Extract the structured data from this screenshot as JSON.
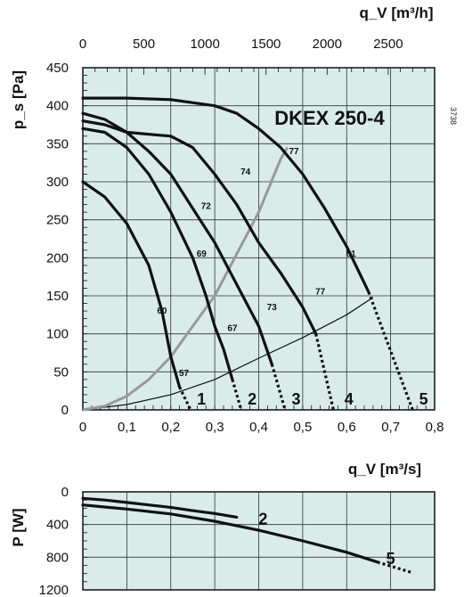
{
  "chart_data": [
    {
      "type": "line",
      "title": "DKEX 250-4",
      "doc_code": "3738",
      "xlabel": "q_V [m³/s]",
      "ylabel": "p_s [Pa]",
      "xlabel_top": "q_V [m³/h]",
      "xlim": [
        0,
        0.8
      ],
      "ylim": [
        0,
        450
      ],
      "xlim_top": [
        0,
        2880
      ],
      "x_ticks": [
        "0",
        "0,1",
        "0,2",
        "0,3",
        "0,4",
        "0,5",
        "0,6",
        "0,7",
        "0,8"
      ],
      "y_ticks": [
        "0",
        "50",
        "100",
        "150",
        "200",
        "250",
        "300",
        "350",
        "400",
        "450"
      ],
      "x_top_ticks": [
        {
          "label": "0",
          "value": 0
        },
        {
          "label": "500",
          "value": 500
        },
        {
          "label": "1000",
          "value": 1000
        },
        {
          "label": "1500",
          "value": 1500
        },
        {
          "label": "2000",
          "value": 2000
        },
        {
          "label": "2500",
          "value": 2500
        }
      ],
      "grid": true,
      "background": "#d9ece9",
      "series": [
        {
          "name": "1",
          "solid": [
            [
              0,
              300
            ],
            [
              0.05,
              280
            ],
            [
              0.1,
              245
            ],
            [
              0.15,
              190
            ],
            [
              0.18,
              130
            ],
            [
              0.2,
              70
            ],
            [
              0.22,
              30
            ]
          ],
          "dashed": [
            [
              0.22,
              30
            ],
            [
              0.245,
              0
            ]
          ],
          "label_at": [
            0.27,
            14
          ]
        },
        {
          "name": "2",
          "solid": [
            [
              0,
              370
            ],
            [
              0.05,
              365
            ],
            [
              0.1,
              345
            ],
            [
              0.15,
              310
            ],
            [
              0.2,
              260
            ],
            [
              0.25,
              200
            ],
            [
              0.28,
              150
            ],
            [
              0.3,
              110
            ],
            [
              0.32,
              80
            ],
            [
              0.34,
              40
            ]
          ],
          "dashed": [
            [
              0.34,
              40
            ],
            [
              0.36,
              0
            ]
          ],
          "label_at": [
            0.385,
            14
          ]
        },
        {
          "name": "3",
          "solid": [
            [
              0,
              380
            ],
            [
              0.05,
              375
            ],
            [
              0.1,
              365
            ],
            [
              0.15,
              340
            ],
            [
              0.2,
              310
            ],
            [
              0.25,
              265
            ],
            [
              0.3,
              220
            ],
            [
              0.35,
              165
            ],
            [
              0.4,
              110
            ],
            [
              0.43,
              60
            ]
          ],
          "dashed": [
            [
              0.43,
              60
            ],
            [
              0.46,
              0
            ]
          ],
          "label_at": [
            0.485,
            14
          ]
        },
        {
          "name": "4",
          "solid": [
            [
              0,
              390
            ],
            [
              0.05,
              382
            ],
            [
              0.1,
              365
            ],
            [
              0.2,
              360
            ],
            [
              0.25,
              345
            ],
            [
              0.3,
              310
            ],
            [
              0.35,
              270
            ],
            [
              0.4,
              220
            ],
            [
              0.45,
              180
            ],
            [
              0.5,
              135
            ],
            [
              0.53,
              100
            ]
          ],
          "dashed": [
            [
              0.53,
              100
            ],
            [
              0.57,
              0
            ]
          ],
          "label_at": [
            0.605,
            14
          ]
        },
        {
          "name": "5",
          "solid": [
            [
              0,
              410
            ],
            [
              0.1,
              410
            ],
            [
              0.2,
              408
            ],
            [
              0.3,
              400
            ],
            [
              0.35,
              390
            ],
            [
              0.4,
              370
            ],
            [
              0.45,
              345
            ],
            [
              0.5,
              310
            ],
            [
              0.55,
              265
            ],
            [
              0.6,
              215
            ],
            [
              0.65,
              155
            ]
          ],
          "dashed": [
            [
              0.65,
              155
            ],
            [
              0.75,
              0
            ]
          ],
          "label_at": [
            0.775,
            14
          ]
        }
      ],
      "efficiency_curve": [
        [
          0,
          0
        ],
        [
          0.05,
          5
        ],
        [
          0.1,
          18
        ],
        [
          0.15,
          40
        ],
        [
          0.2,
          70
        ],
        [
          0.25,
          110
        ],
        [
          0.3,
          150
        ],
        [
          0.35,
          205
        ],
        [
          0.4,
          260
        ],
        [
          0.45,
          330
        ],
        [
          0.465,
          345
        ]
      ],
      "system_curve": [
        [
          0,
          0
        ],
        [
          0.1,
          7
        ],
        [
          0.2,
          20
        ],
        [
          0.3,
          40
        ],
        [
          0.4,
          68
        ],
        [
          0.5,
          95
        ],
        [
          0.6,
          125
        ],
        [
          0.66,
          148
        ]
      ],
      "efficiency_labels": [
        {
          "text": "57",
          "x": 0.23,
          "y": 48
        },
        {
          "text": "60",
          "x": 0.18,
          "y": 130
        },
        {
          "text": "67",
          "x": 0.34,
          "y": 107
        },
        {
          "text": "69",
          "x": 0.27,
          "y": 205
        },
        {
          "text": "73",
          "x": 0.43,
          "y": 135
        },
        {
          "text": "72",
          "x": 0.28,
          "y": 268
        },
        {
          "text": "77",
          "x": 0.54,
          "y": 155
        },
        {
          "text": "74",
          "x": 0.37,
          "y": 313
        },
        {
          "text": "77",
          "x": 0.48,
          "y": 340
        },
        {
          "text": "81",
          "x": 0.61,
          "y": 205
        }
      ]
    },
    {
      "type": "line",
      "ylabel": "P [W]",
      "xlim": [
        0,
        0.8
      ],
      "ylim": [
        0,
        1200
      ],
      "y_inverted": true,
      "y_ticks": [
        "0",
        "400",
        "800",
        "1200"
      ],
      "grid": true,
      "background": "#d9ece9",
      "series": [
        {
          "name": "2",
          "solid": [
            [
              0,
              80
            ],
            [
              0.05,
              100
            ],
            [
              0.1,
              130
            ],
            [
              0.15,
              160
            ],
            [
              0.2,
              190
            ],
            [
              0.25,
              230
            ],
            [
              0.3,
              265
            ],
            [
              0.35,
              310
            ]
          ],
          "dashed": [],
          "label_at": [
            0.41,
            330
          ]
        },
        {
          "name": "5",
          "solid": [
            [
              0,
              160
            ],
            [
              0.1,
              210
            ],
            [
              0.2,
              270
            ],
            [
              0.3,
              360
            ],
            [
              0.4,
              470
            ],
            [
              0.5,
              600
            ],
            [
              0.6,
              740
            ],
            [
              0.67,
              860
            ]
          ],
          "dashed": [
            [
              0.67,
              860
            ],
            [
              0.75,
              990
            ]
          ],
          "label_at": [
            0.7,
            820
          ]
        }
      ]
    }
  ]
}
